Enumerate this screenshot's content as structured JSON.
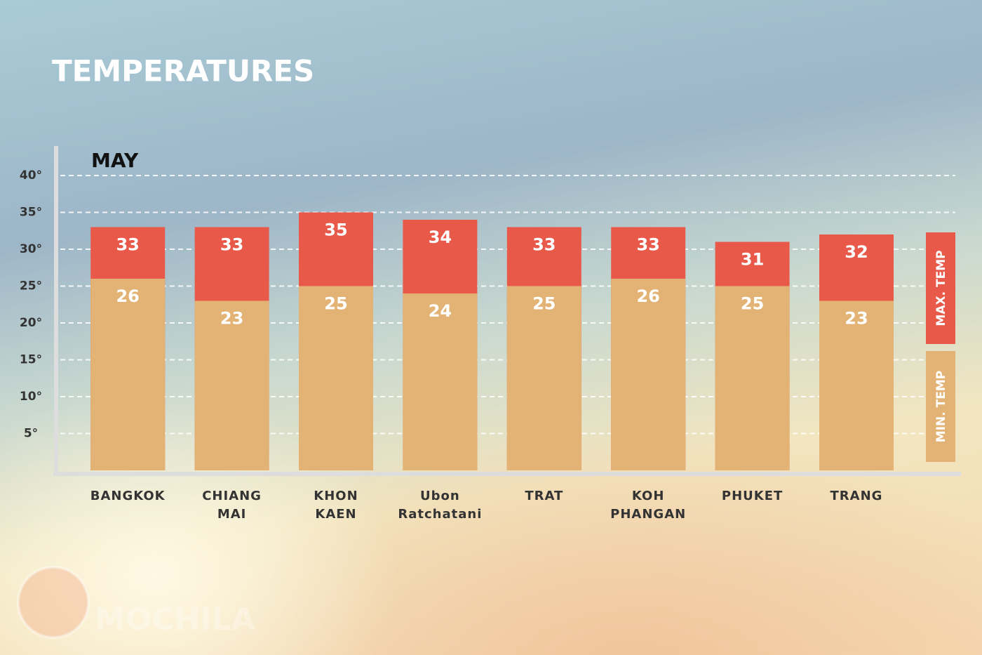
{
  "chart_data": {
    "type": "bar",
    "title": "TEMPERATURES",
    "subtitle": "MAY",
    "watermark": "MOCHILA",
    "categories": [
      "BANGKOK",
      "CHIANG MAI",
      "KHON KAEN",
      "Ubon Ratchatani",
      "TRAT",
      "KOH PHANGAN",
      "PHUKET",
      "TRANG"
    ],
    "series": [
      {
        "name": "MAX. TEMP",
        "color": "#e8594a",
        "values": [
          33,
          33,
          35,
          34,
          33,
          33,
          31,
          32
        ]
      },
      {
        "name": "MIN. TEMP",
        "color": "#e2b374",
        "values": [
          26,
          23,
          25,
          24,
          25,
          26,
          25,
          23
        ]
      }
    ],
    "ylim": [
      0,
      44
    ],
    "yticks": [
      {
        "value": 5,
        "label": "5°"
      },
      {
        "value": 10,
        "label": "10°"
      },
      {
        "value": 15,
        "label": "15°"
      },
      {
        "value": 20,
        "label": "20°"
      },
      {
        "value": 25,
        "label": "25°"
      },
      {
        "value": 30,
        "label": "30°"
      },
      {
        "value": 35,
        "label": "35°"
      },
      {
        "value": 40,
        "label": "40°"
      }
    ],
    "grid": true
  }
}
